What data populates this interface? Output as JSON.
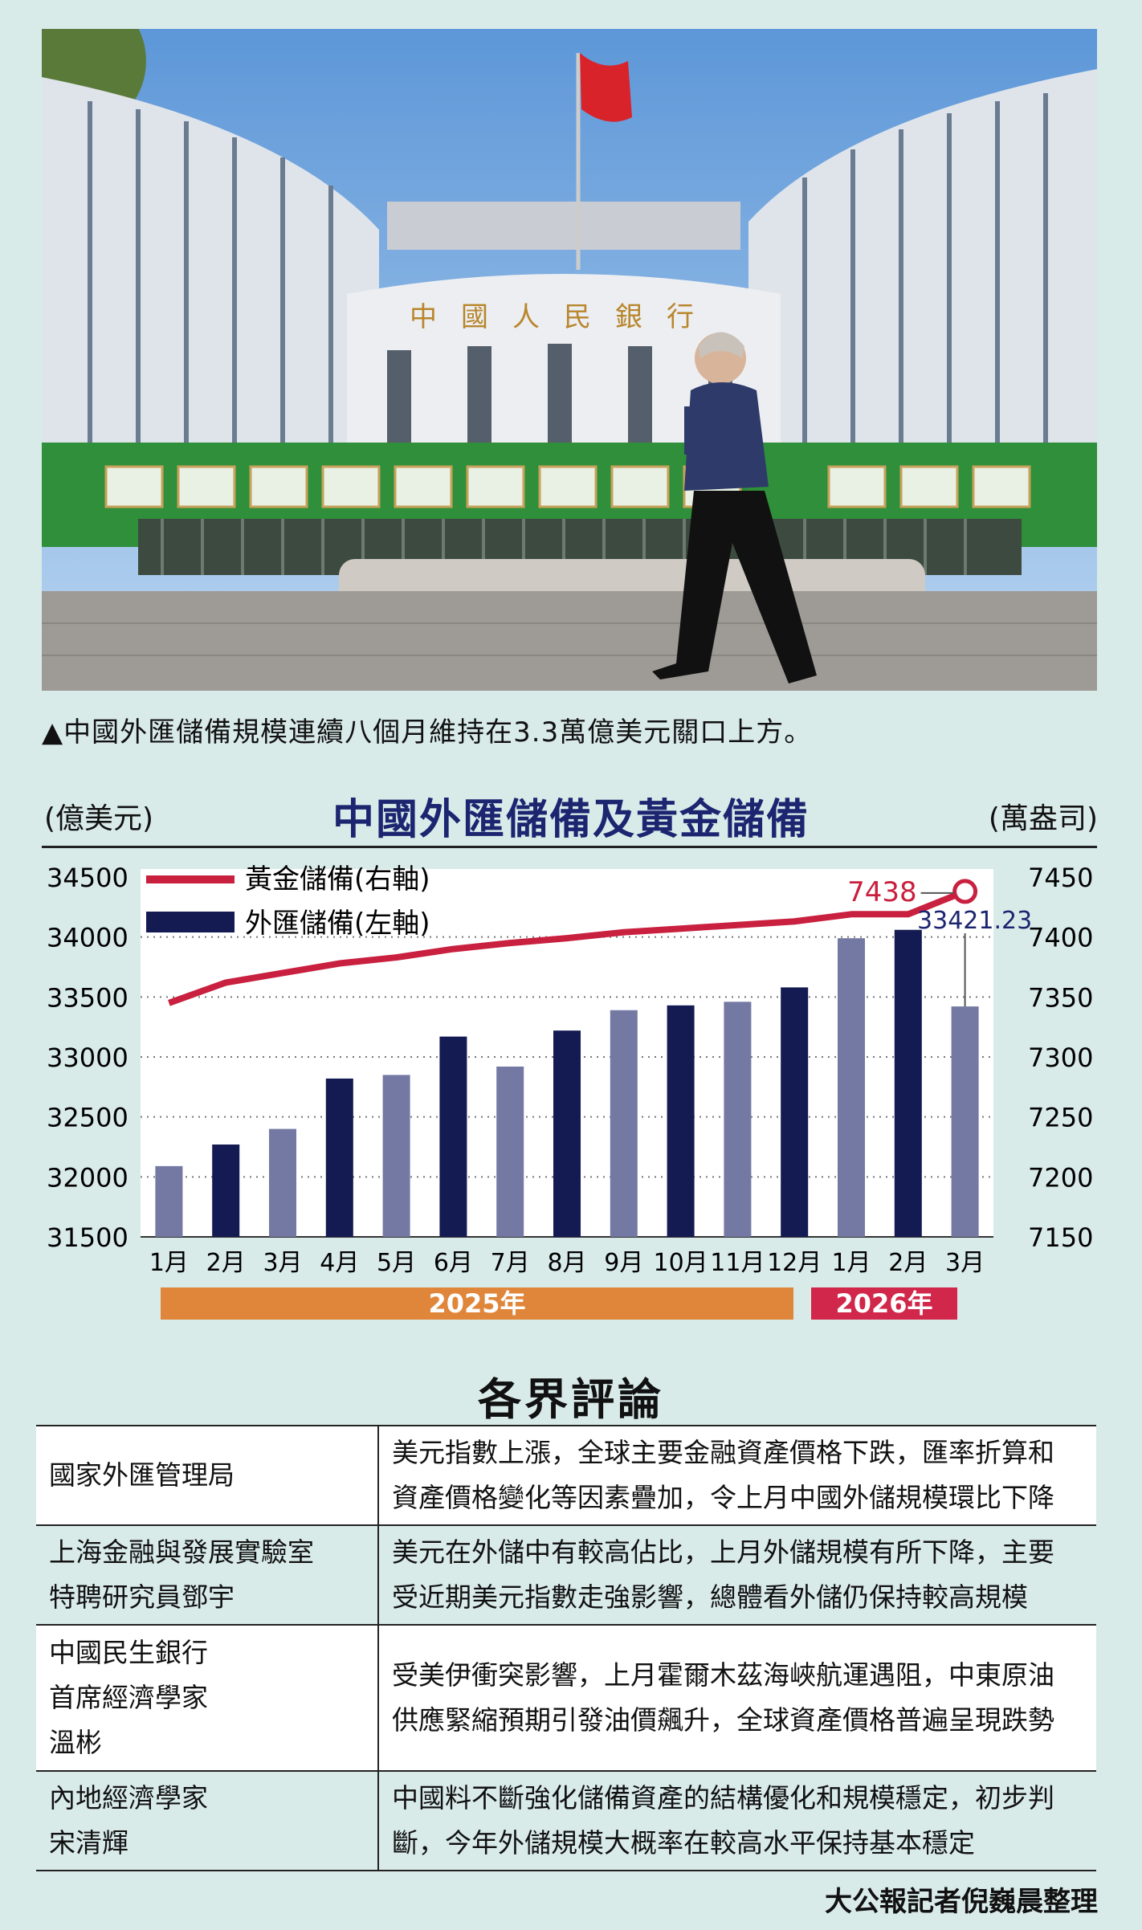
{
  "photo": {
    "building_sign": "中國人民銀行",
    "caption": "▲中國外匯儲備規模連續八個月維持在3.3萬億美元關口上方。"
  },
  "chart_header": {
    "unit_left": "(億美元)",
    "unit_right": "(萬盎司)"
  },
  "chart_data": {
    "type": "bar",
    "title": "中國外匯儲備及黃金儲備",
    "categories": [
      "1月",
      "2月",
      "3月",
      "4月",
      "5月",
      "6月",
      "7月",
      "8月",
      "9月",
      "10月",
      "11月",
      "12月",
      "1月",
      "2月",
      "3月"
    ],
    "series": [
      {
        "name": "外匯儲備(左軸)",
        "type": "bar",
        "axis": "left",
        "values": [
          32090,
          32270,
          32400,
          32820,
          32850,
          33170,
          32920,
          33220,
          33390,
          33430,
          33460,
          33580,
          33990,
          34060,
          33421.23
        ],
        "colors": [
          "#7479a3",
          "#141a52",
          "#7479a3",
          "#141a52",
          "#7479a3",
          "#141a52",
          "#7479a3",
          "#141a52",
          "#7479a3",
          "#141a52",
          "#7479a3",
          "#141a52",
          "#7479a3",
          "#141a52",
          "#7479a3"
        ]
      },
      {
        "name": "黃金儲備(右軸)",
        "type": "line",
        "axis": "right",
        "color": "#c8203e",
        "values": [
          7345,
          7362,
          7370,
          7378,
          7383,
          7390,
          7395,
          7399,
          7404,
          7407,
          7410,
          7413,
          7419,
          7419,
          7438
        ]
      }
    ],
    "y_left": {
      "range": [
        31500,
        34500
      ],
      "ticks": [
        "34500",
        "34000",
        "33500",
        "33000",
        "32500",
        "32000",
        "31500"
      ]
    },
    "y_right": {
      "range": [
        7150,
        7450
      ],
      "ticks": [
        "7450",
        "7400",
        "7350",
        "7300",
        "7250",
        "7200",
        "7150"
      ]
    },
    "annotations": {
      "gold_last": "7438",
      "fx_last": "33421.23"
    },
    "years": {
      "y2025": "2025年",
      "y2026": "2026年"
    },
    "grid": "dotted horizontal",
    "legend": "top-left"
  },
  "comments": {
    "title": "各界評論",
    "rows": [
      {
        "who": [
          "國家外匯管理局"
        ],
        "text": [
          "美元指數上漲，全球主要金融資產價格下跌，匯率折算和",
          "資產價格變化等因素疊加，令上月中國外儲規模環比下降"
        ]
      },
      {
        "who": [
          "上海金融與發展實驗室",
          "特聘研究員鄧宇"
        ],
        "text": [
          "美元在外儲中有較高佔比，上月外儲規模有所下降，主要",
          "受近期美元指數走強影響，總體看外儲仍保持較高規模"
        ]
      },
      {
        "who": [
          "中國民生銀行",
          "首席經濟學家",
          "溫彬"
        ],
        "text": [
          "受美伊衝突影響，上月霍爾木茲海峽航運遇阻，中東原油",
          "供應緊縮預期引發油價飆升，全球資產價格普遍呈現跌勢"
        ]
      },
      {
        "who": [
          "內地經濟學家",
          "宋清輝"
        ],
        "text": [
          "中國料不斷強化儲備資產的結構優化和規模穩定，初步判",
          "斷，今年外儲規模大概率在較高水平保持基本穩定"
        ]
      }
    ],
    "credit": "大公報記者倪巍晨整理"
  }
}
